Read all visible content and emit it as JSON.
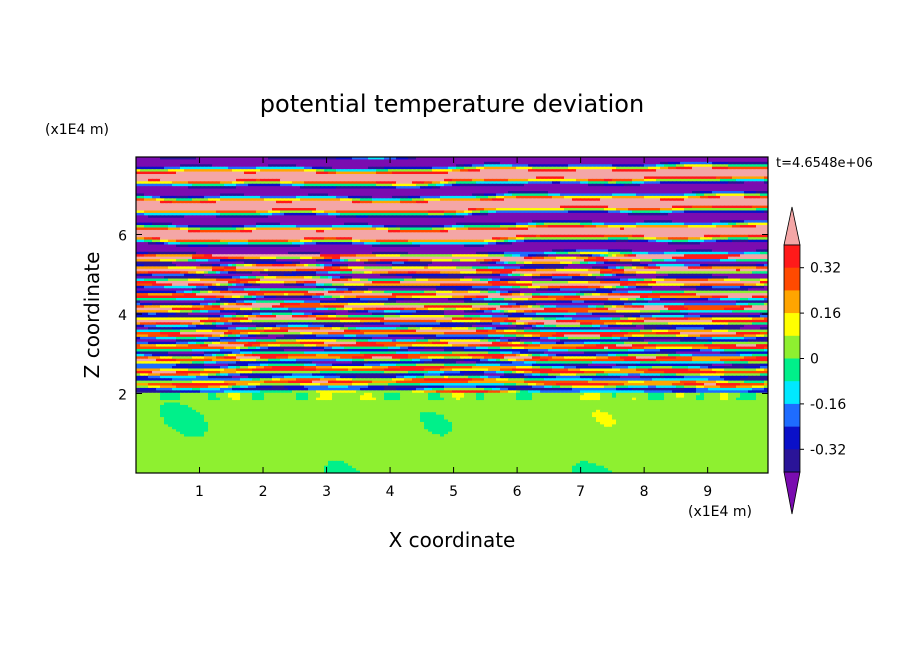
{
  "chart_data": {
    "type": "heatmap",
    "title": "potential temperature deviation",
    "xlabel": "X coordinate",
    "ylabel": "Z coordinate",
    "x_unit_label": "(x1E4 m)",
    "y_unit_label": "(x1E4 m)",
    "time_label": "t=4.6548e+06",
    "xlim": [
      0.0,
      9.95
    ],
    "ylim": [
      0.0,
      7.95
    ],
    "x_ticks": [
      1,
      2,
      3,
      4,
      5,
      6,
      7,
      8,
      9
    ],
    "y_ticks": [
      2,
      4,
      6
    ],
    "colorbar": {
      "tick_labels": [
        "0.32",
        "0.16",
        "0",
        "-0.16",
        "-0.32"
      ],
      "tick_values": [
        0.32,
        0.16,
        0.0,
        -0.16,
        -0.32
      ],
      "levels": [
        -0.4,
        -0.32,
        -0.24,
        -0.16,
        -0.08,
        0.0,
        0.08,
        0.16,
        0.24,
        0.32,
        0.4
      ],
      "over_color": "#f4a6a6",
      "under_color": "#7a0cb0",
      "colors": [
        "#2a1498",
        "#0a10c8",
        "#1e6cff",
        "#00e8ff",
        "#00f08a",
        "#8ef030",
        "#ffff00",
        "#ffa500",
        "#ff4a00",
        "#ff1a1a"
      ]
    },
    "fields": [
      {
        "region": "z 0 to 2",
        "description_values": [
          0.0,
          0.08
        ]
      },
      {
        "region": "z 2 to 5.5",
        "description_values": [
          -0.4,
          0.4
        ]
      },
      {
        "region": "z 5.5 to 7.95",
        "description_values": [
          -0.4,
          0.4
        ]
      }
    ]
  }
}
